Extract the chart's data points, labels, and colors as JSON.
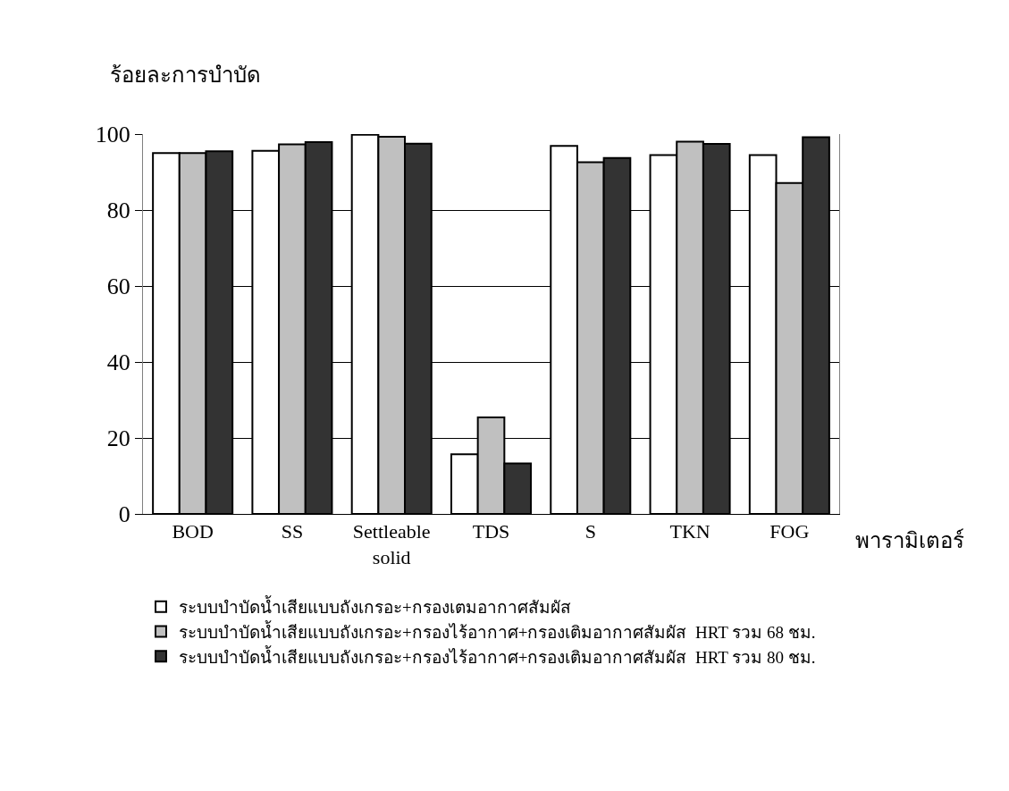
{
  "chart_data": {
    "type": "bar",
    "ylabel": "ร้อยละการบำบัด",
    "xlabel": "พารามิเตอร์",
    "categories": [
      "BOD",
      "SS",
      "Settleable solid",
      "TDS",
      "S",
      "TKN",
      "FOG"
    ],
    "series": [
      {
        "name": "ระบบบำบัดน้ำเสียแบบถังเกรอะ+กรองเตมอากาศสัมผัส",
        "color": "#ffffff",
        "values": [
          95,
          95.6,
          99.8,
          15.7,
          96.9,
          94.5,
          94.5
        ]
      },
      {
        "name": "ระบบบำบัดน้ำเสียแบบถังเกรอะ+กรองไร้อากาศ+กรองเติมอากาศสัมผัส  HRT รวม 68 ชม.",
        "color": "#c0c0c0",
        "values": [
          95,
          97.3,
          99.3,
          25.4,
          92.6,
          98,
          87.1
        ]
      },
      {
        "name": "ระบบบำบัดน้ำเสียแบบถังเกรอะ+กรองไร้อากาศ+กรองเติมอากาศสัมผัส  HRT รวม 80 ชม.",
        "color": "#333333",
        "values": [
          95.5,
          97.9,
          97.5,
          13.3,
          93.7,
          97.4,
          99.2
        ]
      }
    ],
    "ylim": [
      0,
      100
    ],
    "yticks": [
      0,
      20,
      40,
      60,
      80,
      100
    ],
    "grid": "y",
    "legend": "bottom"
  }
}
